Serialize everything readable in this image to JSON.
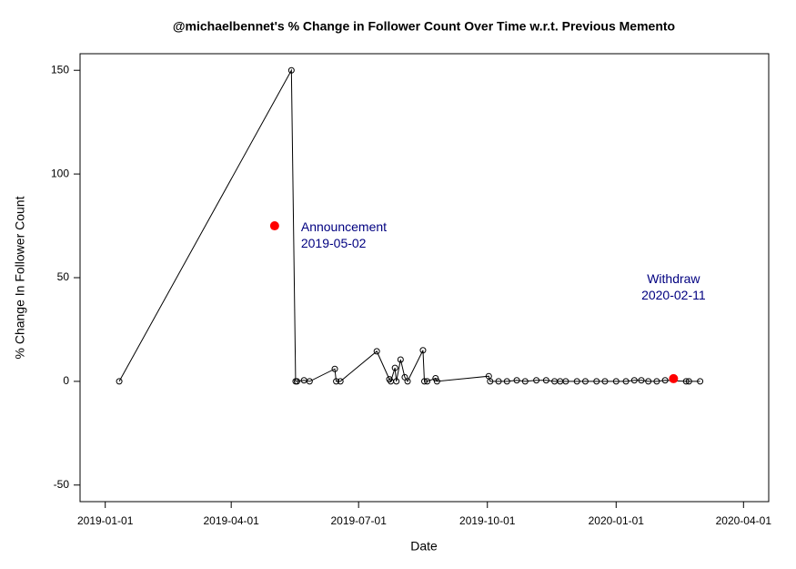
{
  "chart_data": {
    "type": "line",
    "title": "@michaelbennet's % Change in Follower Count Over Time w.r.t. Previous Memento",
    "xlabel": "Date",
    "ylabel": "% Change In Follower Count",
    "x": [
      "2019-01-11",
      "2019-05-14",
      "2019-05-17",
      "2019-05-18",
      "2019-05-23",
      "2019-05-27",
      "2019-06-14",
      "2019-06-15",
      "2019-06-18",
      "2019-07-14",
      "2019-07-23",
      "2019-07-24",
      "2019-07-27",
      "2019-07-28",
      "2019-07-31",
      "2019-08-03",
      "2019-08-05",
      "2019-08-16",
      "2019-08-17",
      "2019-08-19",
      "2019-08-25",
      "2019-08-26",
      "2019-10-02",
      "2019-10-03",
      "2019-10-09",
      "2019-10-15",
      "2019-10-22",
      "2019-10-28",
      "2019-11-05",
      "2019-11-12",
      "2019-11-18",
      "2019-11-22",
      "2019-11-26",
      "2019-12-04",
      "2019-12-10",
      "2019-12-18",
      "2019-12-24",
      "2020-01-01",
      "2020-01-08",
      "2020-01-14",
      "2020-01-19",
      "2020-01-24",
      "2020-01-30",
      "2020-02-05",
      "2020-02-20",
      "2020-02-22",
      "2020-03-01"
    ],
    "series": [
      {
        "color": "#000000",
        "values": [
          0,
          150,
          0,
          0,
          0.5,
          0,
          6,
          0,
          0,
          14.5,
          1,
          0,
          6.5,
          0,
          10.5,
          2,
          0,
          15,
          0,
          0,
          1.5,
          0,
          2.5,
          0,
          0,
          0,
          0.5,
          0,
          0.5,
          0.5,
          0,
          0,
          0,
          0,
          0,
          0,
          0,
          0,
          0,
          0.5,
          0.5,
          0,
          0,
          0.5,
          0,
          0,
          0
        ]
      }
    ],
    "events": [
      {
        "label": "Announcement",
        "date": "2019-05-02",
        "value": 75,
        "color": "#ff0000"
      },
      {
        "label": "Withdraw",
        "date": "2020-02-11",
        "value": 1.3,
        "color": "#ff0000"
      }
    ],
    "xlim": [
      "2018-12-14",
      "2020-04-19"
    ],
    "xticks": [
      "2019-01-01",
      "2019-04-01",
      "2019-07-01",
      "2019-10-01",
      "2020-01-01",
      "2020-04-01"
    ],
    "ylim": [
      -58,
      158
    ],
    "yticks": [
      -50,
      0,
      50,
      100,
      150
    ]
  }
}
